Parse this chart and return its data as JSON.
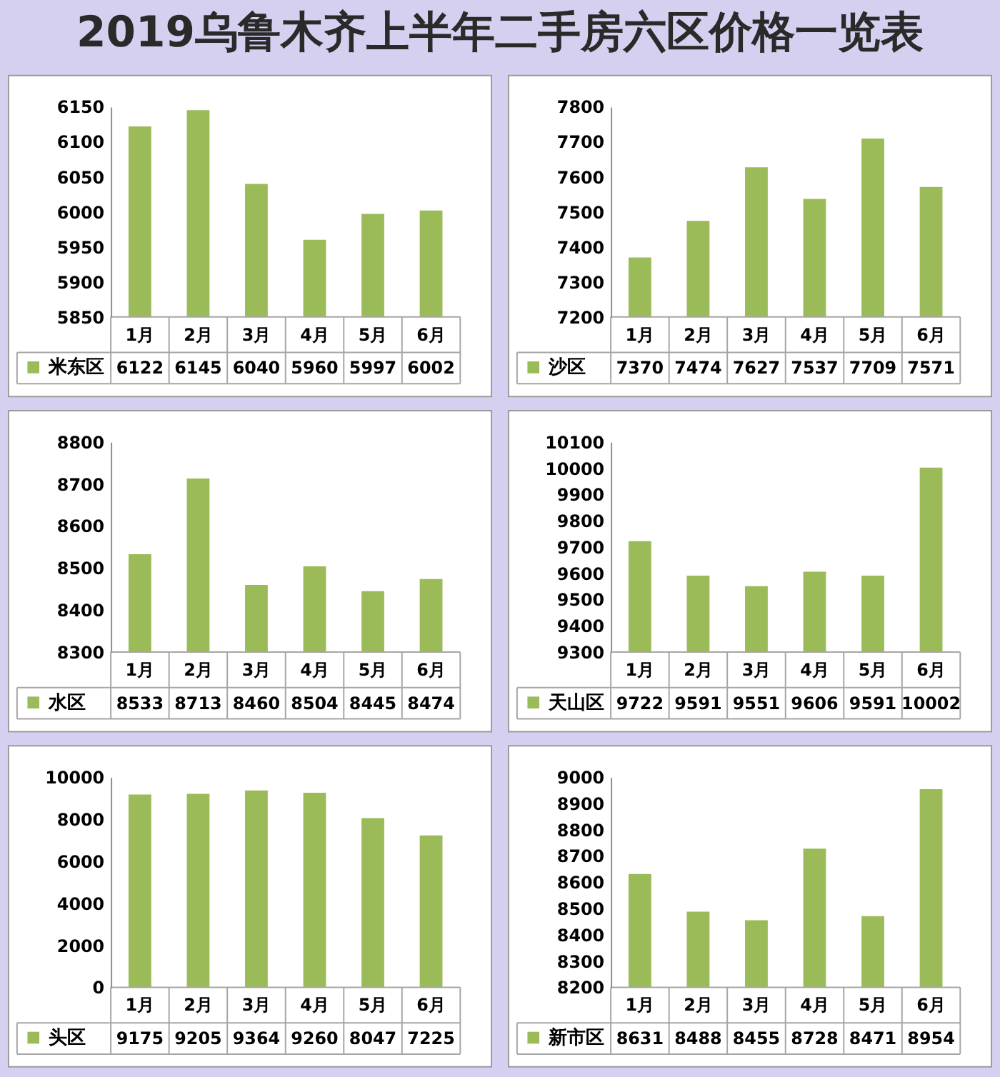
{
  "chart_data": [
    {
      "type": "bar",
      "title": "2019乌鲁木齐上半年二手房六区价格一览表",
      "categories": [
        "1月",
        "2月",
        "3月",
        "4月",
        "5月",
        "6月"
      ],
      "series": [
        {
          "name": "米东区",
          "color": "#9bbb59",
          "values": [
            6122,
            6145,
            6040,
            5960,
            5997,
            6002
          ]
        }
      ],
      "ylim": [
        5850,
        6150
      ],
      "yticks": [
        5850,
        5900,
        5950,
        6000,
        6050,
        6100,
        6150
      ],
      "data_labels": true,
      "legend": "bottom left"
    },
    {
      "type": "bar",
      "categories": [
        "1月",
        "2月",
        "3月",
        "4月",
        "5月",
        "6月"
      ],
      "series": [
        {
          "name": "沙区",
          "color": "#9bbb59",
          "values": [
            7370,
            7474,
            7627,
            7537,
            7709,
            7571
          ]
        }
      ],
      "ylim": [
        7200,
        7800
      ],
      "yticks": [
        7200,
        7300,
        7400,
        7500,
        7600,
        7700,
        7800
      ],
      "data_labels": true,
      "legend": "bottom left"
    },
    {
      "type": "bar",
      "categories": [
        "1月",
        "2月",
        "3月",
        "4月",
        "5月",
        "6月"
      ],
      "series": [
        {
          "name": "水区",
          "color": "#9bbb59",
          "values": [
            8533,
            8713,
            8460,
            8504,
            8445,
            8474
          ]
        }
      ],
      "ylim": [
        8300,
        8800
      ],
      "yticks": [
        8300,
        8400,
        8500,
        8600,
        8700,
        8800
      ],
      "data_labels": true,
      "legend": "bottom left"
    },
    {
      "type": "bar",
      "categories": [
        "1月",
        "2月",
        "3月",
        "4月",
        "5月",
        "6月"
      ],
      "series": [
        {
          "name": "天山区",
          "color": "#9bbb59",
          "values": [
            9722,
            9591,
            9551,
            9606,
            9591,
            10002
          ]
        }
      ],
      "ylim": [
        9300,
        10100
      ],
      "yticks": [
        9300,
        9400,
        9500,
        9600,
        9700,
        9800,
        9900,
        10000,
        10100
      ],
      "data_labels": true,
      "legend": "bottom left"
    },
    {
      "type": "bar",
      "categories": [
        "1月",
        "2月",
        "3月",
        "4月",
        "5月",
        "6月"
      ],
      "series": [
        {
          "name": "头区",
          "color": "#9bbb59",
          "values": [
            9175,
            9205,
            9364,
            9260,
            8047,
            7225
          ]
        }
      ],
      "ylim": [
        0,
        10000
      ],
      "yticks": [
        0,
        2000,
        4000,
        6000,
        8000,
        10000
      ],
      "data_labels": true,
      "legend": "bottom left"
    },
    {
      "type": "bar",
      "categories": [
        "1月",
        "2月",
        "3月",
        "4月",
        "5月",
        "6月"
      ],
      "series": [
        {
          "name": "新市区",
          "color": "#9bbb59",
          "values": [
            8631,
            8488,
            8455,
            8728,
            8471,
            8954
          ]
        }
      ],
      "ylim": [
        8200,
        9000
      ],
      "yticks": [
        8200,
        8300,
        8400,
        8500,
        8600,
        8700,
        8800,
        8900,
        9000
      ],
      "data_labels": true,
      "legend": "bottom left"
    }
  ]
}
